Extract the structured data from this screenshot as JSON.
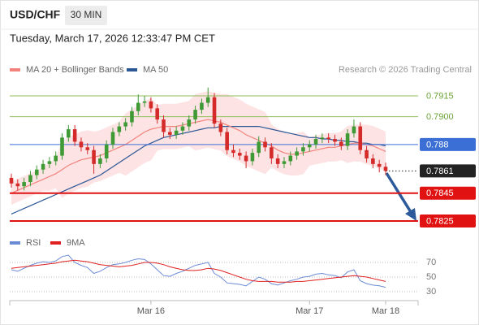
{
  "header": {
    "symbol": "USD/CHF",
    "timeframe": "30 MIN",
    "timestamp": "Tuesday, March 17, 2026 12:33:47 PM CET",
    "credit": "Research © 2026 Trading Central"
  },
  "chart_data": [
    {
      "type": "candlestick",
      "categories": [
        null,
        null,
        null,
        null,
        null,
        null,
        null,
        null,
        null,
        null,
        null,
        null,
        null,
        null,
        null,
        null,
        null,
        null,
        null,
        null,
        null,
        null,
        "Mar 16",
        null,
        null,
        null,
        null,
        null,
        null,
        null,
        null,
        null,
        null,
        null,
        null,
        null,
        null,
        null,
        null,
        null,
        null,
        null,
        null,
        null,
        null,
        null,
        null,
        "Mar 17",
        null,
        null,
        null,
        null,
        null,
        null,
        null,
        null,
        null,
        null,
        null,
        "Mar 18"
      ],
      "open": [
        0.7856,
        0.7852,
        0.785,
        0.7853,
        0.7858,
        0.7862,
        0.7866,
        0.7868,
        0.7872,
        0.7885,
        0.7891,
        0.7882,
        0.7878,
        0.7876,
        0.7866,
        0.787,
        0.788,
        0.7889,
        0.7893,
        0.7896,
        0.7904,
        0.791,
        0.7911,
        0.7906,
        0.7898,
        0.7889,
        0.7887,
        0.789,
        0.7893,
        0.7898,
        0.7905,
        0.791,
        0.7914,
        0.7895,
        0.7889,
        0.7876,
        0.7874,
        0.7872,
        0.7868,
        0.7874,
        0.7882,
        0.7878,
        0.787,
        0.7866,
        0.7868,
        0.7872,
        0.7875,
        0.7878,
        0.788,
        0.7884,
        0.7885,
        0.7884,
        0.7882,
        0.7879,
        0.7888,
        0.7893,
        0.7876,
        0.787,
        0.7866,
        0.7864
      ],
      "high": [
        0.7859,
        0.7855,
        0.7856,
        0.7861,
        0.7865,
        0.7869,
        0.7871,
        0.7875,
        0.7888,
        0.7894,
        0.7894,
        0.7885,
        0.7881,
        0.7879,
        0.7873,
        0.7883,
        0.7892,
        0.7896,
        0.7899,
        0.7907,
        0.7916,
        0.7915,
        0.7914,
        0.7909,
        0.7901,
        0.7892,
        0.7893,
        0.7896,
        0.7901,
        0.7908,
        0.7913,
        0.7921,
        0.7917,
        0.7898,
        0.7892,
        0.788,
        0.7877,
        0.7875,
        0.7877,
        0.7886,
        0.7885,
        0.7881,
        0.7873,
        0.7871,
        0.7875,
        0.7878,
        0.7881,
        0.7883,
        0.7887,
        0.7888,
        0.7888,
        0.7887,
        0.7885,
        0.7891,
        0.7898,
        0.7896,
        0.7879,
        0.7873,
        0.7869,
        0.7867
      ],
      "low": [
        0.7849,
        0.7847,
        0.7847,
        0.785,
        0.7855,
        0.7859,
        0.7863,
        0.7865,
        0.7869,
        0.7882,
        0.7879,
        0.7875,
        0.7873,
        0.7859,
        0.7863,
        0.7867,
        0.7877,
        0.7886,
        0.789,
        0.7893,
        0.7901,
        0.7907,
        0.7903,
        0.7895,
        0.7885,
        0.7884,
        0.7884,
        0.7887,
        0.789,
        0.7895,
        0.7902,
        0.7907,
        0.7892,
        0.7886,
        0.7873,
        0.7871,
        0.7869,
        0.7863,
        0.7865,
        0.7871,
        0.7875,
        0.7866,
        0.7863,
        0.7863,
        0.7865,
        0.7869,
        0.7872,
        0.7875,
        0.7877,
        0.7881,
        0.7881,
        0.7879,
        0.7876,
        0.7876,
        0.7885,
        0.7873,
        0.7867,
        0.7863,
        0.786,
        0.7858
      ],
      "close": [
        0.7852,
        0.785,
        0.7853,
        0.7858,
        0.7862,
        0.7866,
        0.7868,
        0.7872,
        0.7885,
        0.7891,
        0.7882,
        0.7878,
        0.7876,
        0.7866,
        0.787,
        0.788,
        0.7889,
        0.7893,
        0.7896,
        0.7904,
        0.791,
        0.7911,
        0.7906,
        0.7898,
        0.7889,
        0.7887,
        0.789,
        0.7893,
        0.7898,
        0.7905,
        0.791,
        0.7914,
        0.7895,
        0.7889,
        0.7876,
        0.7874,
        0.7872,
        0.7868,
        0.7874,
        0.7882,
        0.7878,
        0.787,
        0.7866,
        0.7868,
        0.7872,
        0.7875,
        0.7878,
        0.788,
        0.7884,
        0.7885,
        0.7884,
        0.7882,
        0.7879,
        0.7888,
        0.7893,
        0.7876,
        0.787,
        0.7866,
        0.7864,
        0.7861
      ],
      "up_color": "#3f9a36",
      "down_color": "#d42a2a",
      "series": [
        {
          "name": "MA 20 + Bollinger Bands",
          "color": "#f2837c",
          "band_color": "#fde3e3",
          "values": [
            0.7845,
            0.7847,
            0.7849,
            0.7851,
            0.7853,
            0.7855,
            0.7857,
            0.7859,
            0.7862,
            0.7865,
            0.7867,
            0.7869,
            0.787,
            0.7871,
            0.7872,
            0.7874,
            0.7876,
            0.7878,
            0.788,
            0.7883,
            0.7886,
            0.7889,
            0.7891,
            0.7892,
            0.7893,
            0.7893,
            0.7893,
            0.7894,
            0.7895,
            0.7896,
            0.7897,
            0.7898,
            0.7897,
            0.7896,
            0.7894,
            0.7892,
            0.789,
            0.7887,
            0.7885,
            0.7883,
            0.7881,
            0.7879,
            0.7876,
            0.7874,
            0.7873,
            0.7873,
            0.7874,
            0.7875,
            0.7876,
            0.7877,
            0.7878,
            0.7878,
            0.7879,
            0.788,
            0.7881,
            0.7881,
            0.788,
            0.7879,
            0.7877,
            0.7875
          ],
          "upper": [
            0.7853,
            0.7855,
            0.7857,
            0.7859,
            0.7861,
            0.7863,
            0.7867,
            0.7869,
            0.7882,
            0.7885,
            0.7887,
            0.7889,
            0.789,
            0.7889,
            0.789,
            0.7892,
            0.7894,
            0.7896,
            0.7902,
            0.7905,
            0.7908,
            0.7911,
            0.7913,
            0.7908,
            0.7909,
            0.7909,
            0.7909,
            0.791,
            0.7911,
            0.7916,
            0.7917,
            0.7918,
            0.7917,
            0.7916,
            0.7916,
            0.7914,
            0.7912,
            0.7909,
            0.7907,
            0.7905,
            0.7903,
            0.7894,
            0.7891,
            0.7889,
            0.7888,
            0.7888,
            0.7889,
            0.7885,
            0.7886,
            0.7887,
            0.7888,
            0.7888,
            0.7889,
            0.7893,
            0.7894,
            0.7894,
            0.7894,
            0.7893,
            0.7891,
            0.7889
          ],
          "lower": [
            0.7837,
            0.7839,
            0.7841,
            0.7843,
            0.7845,
            0.7847,
            0.7847,
            0.7849,
            0.7842,
            0.7845,
            0.7847,
            0.7849,
            0.785,
            0.7853,
            0.7854,
            0.7856,
            0.7858,
            0.786,
            0.7858,
            0.7861,
            0.7864,
            0.7867,
            0.7869,
            0.7876,
            0.7877,
            0.7877,
            0.7877,
            0.7878,
            0.7879,
            0.7876,
            0.7877,
            0.7878,
            0.7877,
            0.7876,
            0.7872,
            0.787,
            0.7868,
            0.7865,
            0.7863,
            0.7861,
            0.7859,
            0.7864,
            0.7861,
            0.7859,
            0.7858,
            0.7858,
            0.7859,
            0.7865,
            0.7866,
            0.7867,
            0.7868,
            0.7868,
            0.7869,
            0.7867,
            0.7868,
            0.7868,
            0.7866,
            0.7865,
            0.7863,
            0.7861
          ]
        },
        {
          "name": "MA 50",
          "color": "#2b5797",
          "values": [
            0.783,
            0.7832,
            0.7834,
            0.7836,
            0.7838,
            0.784,
            0.7842,
            0.7844,
            0.7846,
            0.7848,
            0.785,
            0.7852,
            0.7854,
            0.7856,
            0.7858,
            0.7861,
            0.7864,
            0.7867,
            0.787,
            0.7873,
            0.7876,
            0.7879,
            0.7881,
            0.7883,
            0.7885,
            0.7886,
            0.7887,
            0.7888,
            0.7889,
            0.789,
            0.7891,
            0.7892,
            0.7892,
            0.7893,
            0.7893,
            0.7893,
            0.7893,
            0.7893,
            0.7893,
            0.7893,
            0.7892,
            0.7891,
            0.789,
            0.7889,
            0.7888,
            0.7887,
            0.7886,
            0.7885,
            0.7885,
            0.7884,
            0.7884,
            0.7883,
            0.7883,
            0.7882,
            0.7882,
            0.7881,
            0.7881,
            0.788,
            0.788,
            0.7879
          ]
        }
      ],
      "ylim": [
        0.78174,
        0.79255
      ],
      "levels": [
        {
          "value": 0.7915,
          "color": "#8dbf5a",
          "style": "plain"
        },
        {
          "value": 0.79,
          "label": "0.7900",
          "color": "#8dbf5a",
          "style": "plain"
        },
        {
          "value": 0.788,
          "color": "#3b6fd6",
          "style": "box"
        },
        {
          "value": 0.7861,
          "color": "#222222",
          "style": "dotted-box"
        },
        {
          "value": 0.7845,
          "color": "#e01212",
          "style": "box"
        },
        {
          "value": 0.7825,
          "color": "#e01212",
          "style": "box"
        }
      ]
    },
    {
      "type": "line",
      "series": [
        {
          "name": "RSI",
          "color": "#6b8bd6",
          "values": [
            60,
            58,
            62,
            66,
            69,
            71,
            70,
            72,
            78,
            80,
            70,
            66,
            63,
            55,
            58,
            63,
            67,
            68,
            70,
            73,
            75,
            74,
            68,
            60,
            52,
            51,
            55,
            58,
            62,
            66,
            68,
            70,
            55,
            50,
            42,
            41,
            40,
            38,
            44,
            50,
            47,
            41,
            39,
            42,
            45,
            47,
            50,
            51,
            54,
            55,
            53,
            52,
            49,
            57,
            60,
            45,
            41,
            39,
            38,
            36
          ]
        },
        {
          "name": "9MA",
          "color": "#e02020",
          "values": [
            62,
            63,
            64,
            65,
            66,
            67,
            68,
            69,
            71,
            72,
            73,
            72,
            71,
            69,
            67,
            66,
            65,
            64,
            65,
            66,
            68,
            70,
            70,
            69,
            67,
            64,
            62,
            60,
            59,
            59,
            60,
            62,
            61,
            59,
            56,
            53,
            50,
            47,
            45,
            44,
            44,
            44,
            43,
            43,
            43,
            44,
            44,
            45,
            46,
            47,
            48,
            49,
            50,
            51,
            52,
            51,
            50,
            48,
            46,
            44
          ]
        }
      ],
      "ylim": [
        20,
        90
      ],
      "yticks": [
        70,
        50,
        30
      ],
      "grid": true
    }
  ]
}
